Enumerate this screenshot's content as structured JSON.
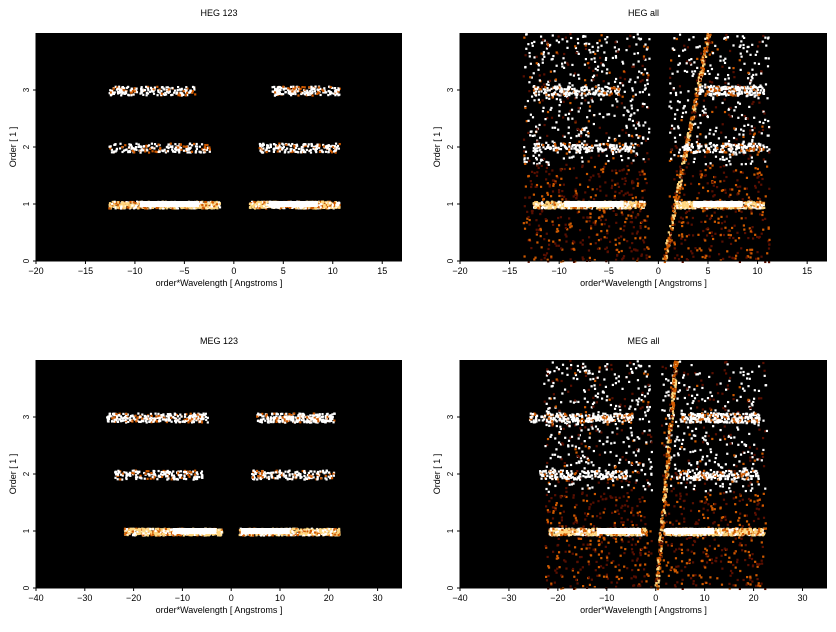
{
  "colors": {
    "background": "#000000",
    "axis": "#000000",
    "text": "#000000",
    "heat_low": "#5a0f00",
    "heat_mid": "#d05a00",
    "heat_high": "#ffd780",
    "heat_max": "#ffffff"
  },
  "chart_data": [
    {
      "type": "heatmap",
      "title": "HEG 123",
      "xlabel": "order*Wavelength [ Angstroms ]",
      "ylabel": "Order [ 1 ]",
      "xlim": [
        -20,
        17
      ],
      "ylim": [
        0,
        4
      ],
      "xticks": [
        -20,
        -15,
        -10,
        -5,
        0,
        5,
        10,
        15
      ],
      "yticks": [
        0,
        1,
        2,
        3
      ],
      "grid": false,
      "bands": [
        {
          "order": 1,
          "x_range": [
            [
              -12.7,
              -1.5
            ],
            [
              1.5,
              10.6
            ]
          ],
          "density": "high",
          "core": [
            [
              -9.5,
              -3.5
            ],
            [
              3.5,
              8.5
            ]
          ]
        },
        {
          "order": 2,
          "x_range": [
            [
              -12.7,
              -2.5
            ],
            [
              2.5,
              10.6
            ]
          ],
          "density": "low"
        },
        {
          "order": 3,
          "x_range": [
            [
              -12.7,
              -4
            ],
            [
              3.8,
              10.6
            ]
          ],
          "density": "low"
        }
      ]
    },
    {
      "type": "heatmap",
      "title": "HEG all",
      "xlabel": "order*Wavelength [ Angstroms ]",
      "ylabel": "Order [ 1 ]",
      "xlim": [
        -20,
        17
      ],
      "ylim": [
        0,
        4
      ],
      "xticks": [
        -20,
        -15,
        -10,
        -5,
        0,
        5,
        10,
        15
      ],
      "yticks": [
        0,
        1,
        2,
        3
      ],
      "grid": false,
      "bands": [
        {
          "order": 1,
          "x_range": [
            [
              -12.7,
              -1.5
            ],
            [
              1.5,
              10.6
            ]
          ],
          "density": "high",
          "core": [
            [
              -9.5,
              -3.5
            ],
            [
              3.5,
              8.5
            ]
          ]
        },
        {
          "order": 2,
          "x_range": [
            [
              -12.7,
              -2.5
            ],
            [
              2.5,
              10.6
            ]
          ],
          "density": "low"
        },
        {
          "order": 3,
          "x_range": [
            [
              -12.7,
              -4
            ],
            [
              3.8,
              10.6
            ]
          ],
          "density": "low"
        }
      ],
      "background_noise": true,
      "streak": {
        "x_at_bottom": 0.5,
        "x_at_top": 5.0
      }
    },
    {
      "type": "heatmap",
      "title": "MEG 123",
      "xlabel": "order*Wavelength [ Angstroms ]",
      "ylabel": "Order [ 1 ]",
      "xlim": [
        -40,
        35
      ],
      "ylim": [
        0,
        4
      ],
      "xticks": [
        -40,
        -30,
        -20,
        -10,
        0,
        10,
        20,
        30
      ],
      "yticks": [
        0,
        1,
        2,
        3
      ],
      "grid": false,
      "bands": [
        {
          "order": 1,
          "x_range": [
            [
              -22,
              -2
            ],
            [
              1.5,
              22
            ]
          ],
          "density": "high",
          "core": [
            [
              -12,
              -3
            ],
            [
              2,
              12
            ]
          ]
        },
        {
          "order": 2,
          "x_range": [
            [
              -24,
              -6
            ],
            [
              4,
              21
            ]
          ],
          "density": "low"
        },
        {
          "order": 3,
          "x_range": [
            [
              -26,
              -5
            ],
            [
              5,
              21
            ]
          ],
          "density": "medium"
        }
      ]
    },
    {
      "type": "heatmap",
      "title": "MEG all",
      "xlabel": "order*Wavelength [ Angstroms ]",
      "ylabel": "Order [ 1 ]",
      "xlim": [
        -40,
        35
      ],
      "ylim": [
        0,
        4
      ],
      "xticks": [
        -40,
        -30,
        -20,
        -10,
        0,
        10,
        20,
        30
      ],
      "yticks": [
        0,
        1,
        2,
        3
      ],
      "grid": false,
      "bands": [
        {
          "order": 1,
          "x_range": [
            [
              -22,
              -2
            ],
            [
              1.5,
              22
            ]
          ],
          "density": "high",
          "core": [
            [
              -12,
              -3
            ],
            [
              2,
              12
            ]
          ]
        },
        {
          "order": 2,
          "x_range": [
            [
              -24,
              -6
            ],
            [
              4,
              21
            ]
          ],
          "density": "low"
        },
        {
          "order": 3,
          "x_range": [
            [
              -26,
              -5
            ],
            [
              5,
              21
            ]
          ],
          "density": "medium"
        }
      ],
      "background_noise": true,
      "streak": {
        "x_at_bottom": 0.0,
        "x_at_top": 4.0
      }
    }
  ]
}
